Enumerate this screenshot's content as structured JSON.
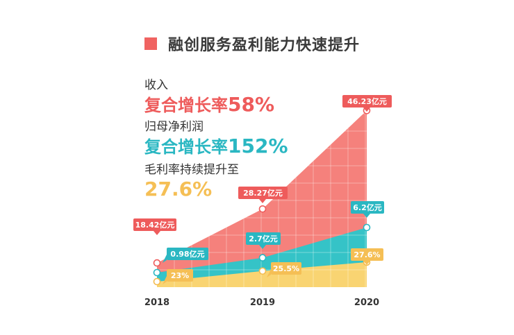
{
  "title": "融创服务盈利能力快速提升",
  "stats": [
    {
      "label": "收入",
      "prefix": "复合增长率",
      "value": "58%",
      "color": "#ee5b5b"
    },
    {
      "label": "归母净利润",
      "prefix": "复合增长率",
      "value": "152%",
      "color": "#2ab7c2"
    },
    {
      "label": "毛利率持续提升至",
      "prefix": "",
      "value": "27.6%",
      "color": "#f5bf55"
    }
  ],
  "colors": {
    "revenue": "#f5817c",
    "profit": "#35c3c7",
    "margin": "#f9d472",
    "title_square": "#f06361"
  },
  "chart_data": {
    "type": "area",
    "categories": [
      "2018",
      "2019",
      "2020"
    ],
    "series": [
      {
        "key": "revenue",
        "values": [
          18.42,
          28.27,
          46.23
        ],
        "labels": [
          "18.42亿元",
          "28.27亿元",
          "46.23亿元"
        ]
      },
      {
        "key": "profit",
        "values": [
          0.98,
          2.7,
          6.2
        ],
        "labels": [
          "0.98亿元",
          "2.7亿元",
          "6.2亿元"
        ]
      },
      {
        "key": "margin",
        "values": [
          23,
          25.5,
          27.6
        ],
        "labels": [
          "23%",
          "25.5%",
          "27.6%"
        ]
      }
    ],
    "grid": true
  }
}
